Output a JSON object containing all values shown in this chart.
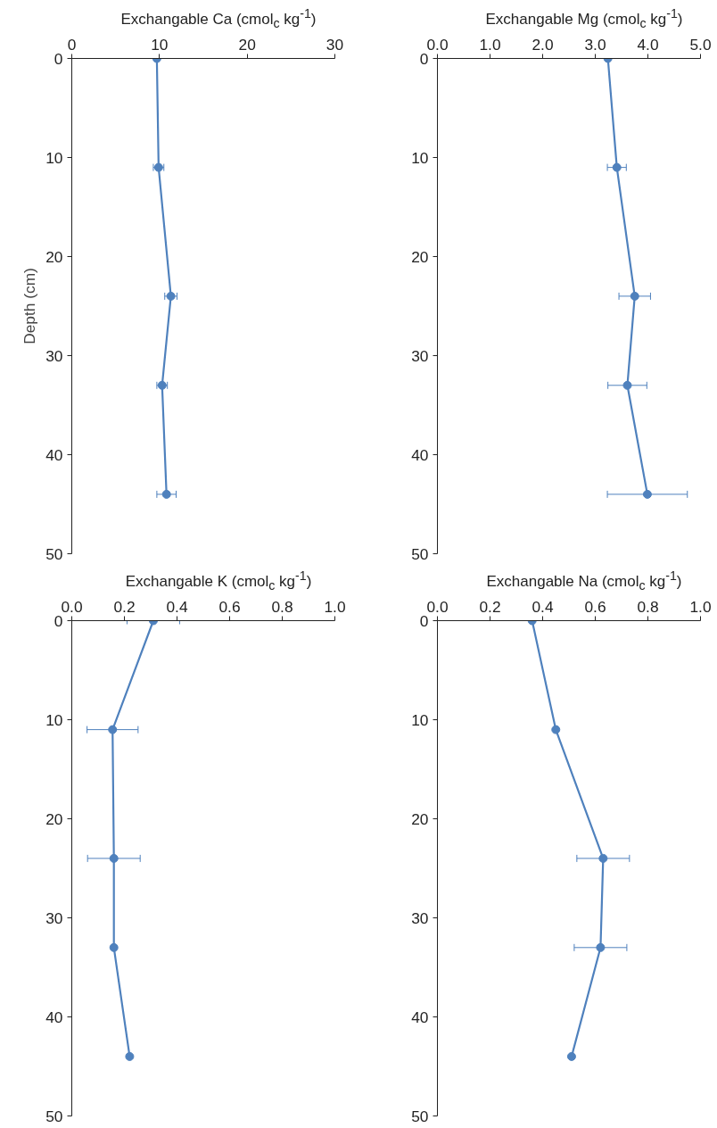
{
  "chart_data": [
    {
      "type": "line",
      "title": "Exchangable Ca (cmol$_{c}$ kg$^{-1}$)",
      "ylabel": "Depth (cm)",
      "orientation": "horizontal",
      "x": [
        0,
        11,
        24,
        33,
        44
      ],
      "series": [
        {
          "color": "#4f81bd",
          "values": [
            9.7,
            9.9,
            11.3,
            10.3,
            10.8
          ],
          "errors": [
            null,
            0.6,
            0.7,
            0.6,
            1.1
          ]
        }
      ],
      "xlim": [
        0,
        30
      ],
      "xticks": [
        0,
        10,
        20,
        30
      ],
      "ylim": [
        50,
        0
      ],
      "yticks": [
        0,
        10,
        20,
        30,
        40,
        50
      ],
      "grid": false,
      "marker": "circle",
      "line_style": "solid"
    },
    {
      "type": "line",
      "title": "Exchangable Mg (cmol$_{c}$ kg$^{-1}$)",
      "orientation": "horizontal",
      "x": [
        0,
        11,
        24,
        33,
        44
      ],
      "series": [
        {
          "color": "#4f81bd",
          "values": [
            3.24,
            3.41,
            3.75,
            3.61,
            3.99
          ],
          "errors": [
            null,
            0.18,
            0.3,
            0.37,
            0.76
          ]
        }
      ],
      "xlim": [
        0,
        5
      ],
      "xticks": [
        {
          "value": 0,
          "label": "0.0"
        },
        {
          "value": 1,
          "label": "1.0"
        },
        {
          "value": 2,
          "label": "2.0"
        },
        {
          "value": 3,
          "label": "3.0"
        },
        {
          "value": 4,
          "label": "4.0"
        },
        {
          "value": 5,
          "label": "5.0"
        }
      ],
      "ylim": [
        50,
        0
      ],
      "yticks": [
        0,
        10,
        20,
        30,
        40,
        50
      ],
      "grid": false,
      "marker": "circle",
      "line_style": "solid"
    },
    {
      "type": "line",
      "title": "Exchangable K (cmol$_{c}$ kg$^{-1}$)",
      "orientation": "horizontal",
      "x": [
        0,
        11,
        24,
        33,
        44
      ],
      "series": [
        {
          "color": "#4f81bd",
          "values": [
            0.31,
            0.155,
            0.16,
            0.16,
            0.22
          ],
          "errors": [
            0.1,
            0.097,
            0.1,
            null,
            null
          ]
        }
      ],
      "xlim": [
        0,
        1
      ],
      "xticks": [
        {
          "value": 0,
          "label": "0.0"
        },
        {
          "value": 0.2,
          "label": "0.2"
        },
        {
          "value": 0.4,
          "label": "0.4"
        },
        {
          "value": 0.6,
          "label": "0.6"
        },
        {
          "value": 0.8,
          "label": "0.8"
        },
        {
          "value": 1,
          "label": "1.0"
        }
      ],
      "ylim": [
        50,
        0
      ],
      "yticks": [
        0,
        10,
        20,
        30,
        40,
        50
      ],
      "grid": false,
      "marker": "circle",
      "line_style": "solid"
    },
    {
      "type": "line",
      "title": "Exchangable Na (cmol$_{c}$ kg$^{-1}$)",
      "orientation": "horizontal",
      "x": [
        0,
        11,
        24,
        33,
        44
      ],
      "series": [
        {
          "color": "#4f81bd",
          "values": [
            0.36,
            0.45,
            0.63,
            0.62,
            0.51
          ],
          "errors": [
            null,
            null,
            0.1,
            0.1,
            null
          ]
        }
      ],
      "xlim": [
        0,
        1
      ],
      "xticks": [
        {
          "value": 0,
          "label": "0.0"
        },
        {
          "value": 0.2,
          "label": "0.2"
        },
        {
          "value": 0.4,
          "label": "0.4"
        },
        {
          "value": 0.6,
          "label": "0.6"
        },
        {
          "value": 0.8,
          "label": "0.8"
        },
        {
          "value": 1,
          "label": "1.0"
        }
      ],
      "ylim": [
        50,
        0
      ],
      "yticks": [
        0,
        10,
        20,
        30,
        40,
        50
      ],
      "grid": false,
      "marker": "circle",
      "line_style": "solid"
    }
  ]
}
